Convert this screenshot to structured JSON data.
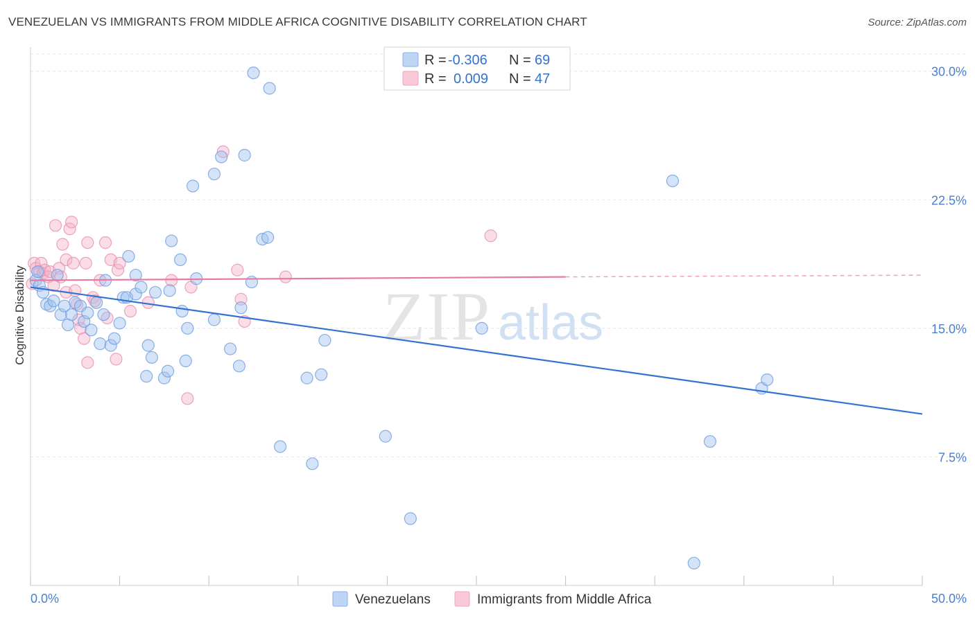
{
  "title": "VENEZUELAN VS IMMIGRANTS FROM MIDDLE AFRICA COGNITIVE DISABILITY CORRELATION CHART",
  "source": "Source: ZipAtlas.com",
  "watermark": {
    "zip": "ZIP",
    "atlas": "atlas"
  },
  "colors": {
    "blue": "#9fc2ef",
    "blue_line": "#3272d0",
    "pink": "#f5b3c8",
    "pink_line": "#e87aa0",
    "axis_text": "#4a7fd0",
    "grid": "#e3e3e3"
  },
  "legend": {
    "rows": [
      {
        "r_label": "R =",
        "r_value": "-0.306",
        "n_label": "N =",
        "n_value": "69"
      },
      {
        "r_label": "R =",
        "r_value": "0.009",
        "n_label": "N =",
        "n_value": "47"
      }
    ]
  },
  "chart_data": {
    "type": "scatter",
    "title": "VENEZUELAN VS IMMIGRANTS FROM MIDDLE AFRICA COGNITIVE DISABILITY CORRELATION CHART",
    "xlabel": "",
    "ylabel": "Cognitive Disability",
    "xlim": [
      0,
      50
    ],
    "ylim": [
      0,
      31
    ],
    "x_tick_labels": [
      "0.0%",
      "50.0%"
    ],
    "y_ticks": [
      7.5,
      15.0,
      22.5,
      30.0
    ],
    "y_tick_labels": [
      "7.5%",
      "15.0%",
      "22.5%",
      "30.0%"
    ],
    "grid": true,
    "legend_position": "top-center",
    "series": [
      {
        "name": "Venezuelans",
        "r": -0.306,
        "n": 69,
        "trend": {
          "x0": 0,
          "y0": 17.4,
          "x1": 50,
          "y1": 10.0
        },
        "points": [
          [
            0.3,
            17.8
          ],
          [
            0.5,
            17.5
          ],
          [
            0.7,
            17.1
          ],
          [
            0.9,
            16.4
          ],
          [
            1.1,
            16.3
          ],
          [
            1.3,
            16.6
          ],
          [
            1.5,
            18.1
          ],
          [
            1.7,
            15.8
          ],
          [
            1.9,
            16.3
          ],
          [
            2.1,
            15.2
          ],
          [
            2.3,
            15.8
          ],
          [
            2.5,
            16.5
          ],
          [
            2.8,
            16.3
          ],
          [
            3.0,
            15.4
          ],
          [
            3.2,
            15.9
          ],
          [
            3.4,
            14.9
          ],
          [
            3.7,
            16.5
          ],
          [
            3.9,
            14.1
          ],
          [
            4.1,
            15.8
          ],
          [
            4.2,
            17.8
          ],
          [
            4.5,
            14.0
          ],
          [
            4.7,
            14.4
          ],
          [
            5.0,
            15.3
          ],
          [
            5.2,
            16.8
          ],
          [
            5.4,
            16.8
          ],
          [
            5.5,
            19.2
          ],
          [
            5.9,
            18.1
          ],
          [
            5.9,
            17.0
          ],
          [
            6.2,
            17.4
          ],
          [
            6.5,
            12.2
          ],
          [
            6.6,
            14.0
          ],
          [
            6.8,
            13.3
          ],
          [
            7.0,
            17.1
          ],
          [
            7.5,
            12.1
          ],
          [
            7.7,
            12.5
          ],
          [
            7.8,
            17.2
          ],
          [
            7.9,
            20.1
          ],
          [
            8.4,
            19.0
          ],
          [
            8.5,
            16.0
          ],
          [
            8.7,
            13.1
          ],
          [
            8.8,
            15.0
          ],
          [
            9.1,
            23.3
          ],
          [
            9.3,
            17.9
          ],
          [
            10.3,
            24.0
          ],
          [
            10.3,
            15.5
          ],
          [
            10.7,
            25.0
          ],
          [
            11.2,
            13.8
          ],
          [
            11.7,
            12.8
          ],
          [
            11.8,
            16.2
          ],
          [
            12.0,
            25.1
          ],
          [
            12.4,
            17.7
          ],
          [
            12.5,
            29.9
          ],
          [
            13.0,
            20.2
          ],
          [
            13.3,
            20.3
          ],
          [
            13.4,
            29.0
          ],
          [
            14.0,
            8.1
          ],
          [
            15.5,
            12.1
          ],
          [
            15.8,
            7.1
          ],
          [
            16.3,
            12.3
          ],
          [
            16.5,
            14.3
          ],
          [
            19.9,
            8.7
          ],
          [
            21.3,
            3.9
          ],
          [
            25.3,
            15.0
          ],
          [
            36.0,
            23.6
          ],
          [
            38.1,
            8.4
          ],
          [
            41.0,
            11.5
          ],
          [
            41.3,
            12.0
          ],
          [
            37.2,
            1.3
          ],
          [
            0.4,
            18.3
          ]
        ]
      },
      {
        "name": "Immigrants from Middle Africa",
        "r": 0.009,
        "n": 47,
        "trend": {
          "x0": 0,
          "y0": 17.8,
          "x1": 30,
          "y1": 18.0,
          "dash_to_x": 50,
          "dash_to_y": 18.1
        },
        "points": [
          [
            0.2,
            18.8
          ],
          [
            0.3,
            18.5
          ],
          [
            0.5,
            18.3
          ],
          [
            0.6,
            18.8
          ],
          [
            0.7,
            18.2
          ],
          [
            0.8,
            18.4
          ],
          [
            1.0,
            18.0
          ],
          [
            1.1,
            18.3
          ],
          [
            1.3,
            17.5
          ],
          [
            1.4,
            21.0
          ],
          [
            1.6,
            18.5
          ],
          [
            1.7,
            18.0
          ],
          [
            1.8,
            19.9
          ],
          [
            2.0,
            17.1
          ],
          [
            2.0,
            19.0
          ],
          [
            2.2,
            20.8
          ],
          [
            2.3,
            21.2
          ],
          [
            2.4,
            18.8
          ],
          [
            2.5,
            17.2
          ],
          [
            2.6,
            16.4
          ],
          [
            2.7,
            15.5
          ],
          [
            2.8,
            15.0
          ],
          [
            3.0,
            14.4
          ],
          [
            3.1,
            18.8
          ],
          [
            3.2,
            20.0
          ],
          [
            3.2,
            13.0
          ],
          [
            3.5,
            16.8
          ],
          [
            3.6,
            16.6
          ],
          [
            3.9,
            17.8
          ],
          [
            4.2,
            20.0
          ],
          [
            4.3,
            15.6
          ],
          [
            4.5,
            19.0
          ],
          [
            4.8,
            13.2
          ],
          [
            4.9,
            18.4
          ],
          [
            5.0,
            18.8
          ],
          [
            5.6,
            16.0
          ],
          [
            6.6,
            16.5
          ],
          [
            7.9,
            17.8
          ],
          [
            8.8,
            10.9
          ],
          [
            9.0,
            17.4
          ],
          [
            10.8,
            25.3
          ],
          [
            11.6,
            18.4
          ],
          [
            11.8,
            16.7
          ],
          [
            12.0,
            15.4
          ],
          [
            14.3,
            18.0
          ],
          [
            25.8,
            20.4
          ],
          [
            0.1,
            17.6
          ]
        ]
      }
    ]
  }
}
